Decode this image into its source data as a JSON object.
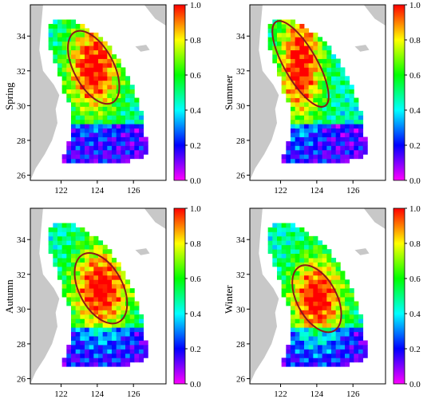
{
  "figure": {
    "panels": [
      {
        "season": "Spring",
        "hotspot": {
          "cx": 123.8,
          "cy": 32.2,
          "rx": 1.1,
          "ry": 2.3,
          "rot": 28
        }
      },
      {
        "season": "Summer",
        "hotspot": {
          "cx": 123.1,
          "cy": 32.4,
          "rx": 0.9,
          "ry": 2.8,
          "rot": 30
        }
      },
      {
        "season": "Autumn",
        "hotspot": {
          "cx": 124.2,
          "cy": 31.2,
          "rx": 1.2,
          "ry": 2.2,
          "rot": 28
        }
      },
      {
        "season": "Winter",
        "hotspot": {
          "cx": 124.0,
          "cy": 30.6,
          "rx": 1.1,
          "ry": 2.1,
          "rot": 28
        }
      }
    ],
    "x_ticks": [
      "122",
      "124",
      "126"
    ],
    "y_ticks": [
      "26",
      "28",
      "30",
      "32",
      "34"
    ],
    "colorbar_ticks": [
      "0.0",
      "0.2",
      "0.4",
      "0.6",
      "0.8",
      "1.0"
    ],
    "colors": {
      "colormap": [
        "#ff00ff",
        "#0000ff",
        "#00ffff",
        "#00ff00",
        "#ffff00",
        "#ff0000"
      ],
      "land": "#c8c8c8",
      "ellipse": "#8b1a1a"
    }
  }
}
